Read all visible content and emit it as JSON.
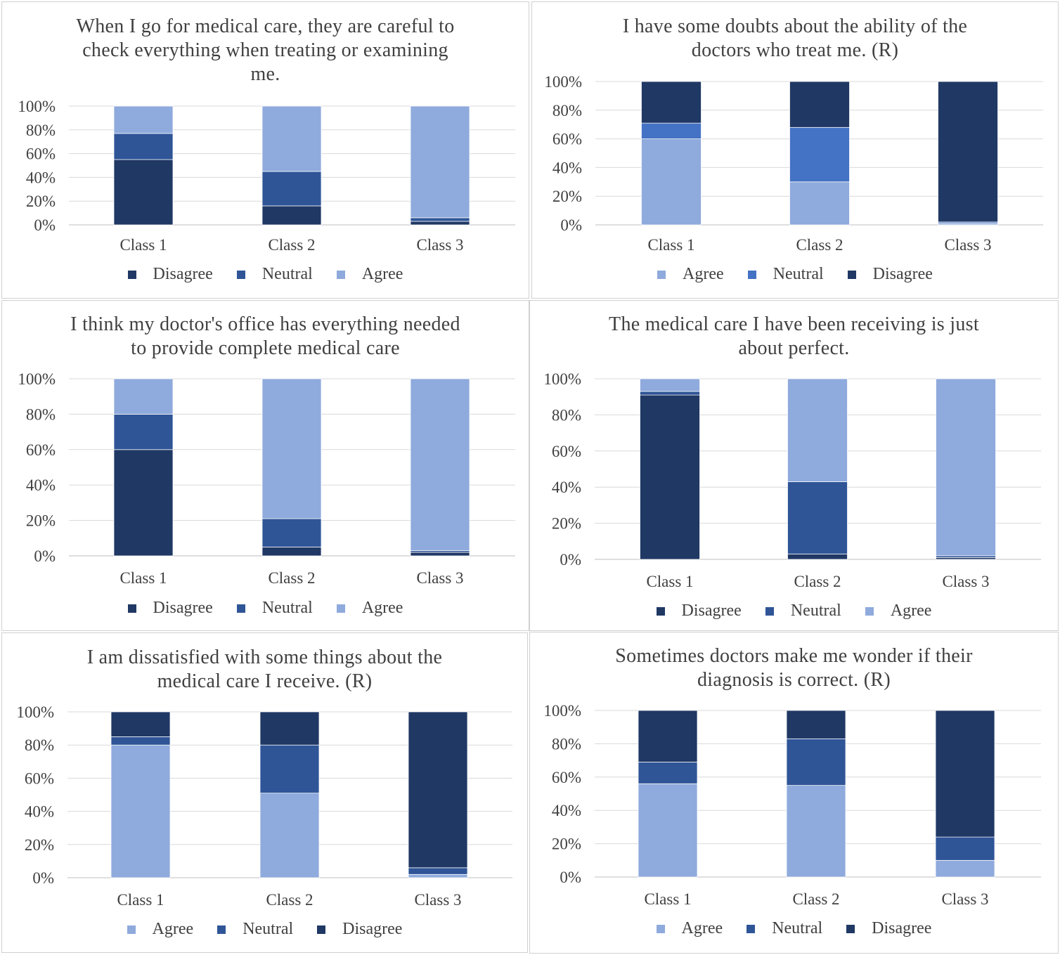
{
  "colors": {
    "Disagree": "#203864",
    "Neutral": "#2F5597",
    "Neutral_bright": "#4472C4",
    "Agree": "#8FAADC",
    "grid": "#d9d9d9",
    "text": "#404040"
  },
  "chart_data": [
    {
      "type": "bar",
      "stacked": true,
      "title": "When I go for medical care, they are careful to check everything when treating or examining me.",
      "title_lines": [
        "When I go for medical care, they are careful to",
        "check everything when treating or examining",
        "me."
      ],
      "categories": [
        "Class 1",
        "Class 2",
        "Class 3"
      ],
      "yticks": [
        "0%",
        "20%",
        "40%",
        "60%",
        "80%",
        "100%"
      ],
      "ylim": [
        0,
        100
      ],
      "series": [
        {
          "name": "Disagree",
          "values": [
            55,
            16,
            3
          ]
        },
        {
          "name": "Neutral",
          "values": [
            22,
            29,
            3
          ]
        },
        {
          "name": "Agree",
          "values": [
            23,
            55,
            94
          ]
        }
      ],
      "legend": [
        "Disagree",
        "Neutral",
        "Agree"
      ]
    },
    {
      "type": "bar",
      "stacked": true,
      "title": "I have some doubts about the ability of the doctors who treat me. (R)",
      "title_lines": [
        "I have some doubts about the ability of the",
        "doctors who treat me. (R)"
      ],
      "categories": [
        "Class 1",
        "Class 2",
        "Class 3"
      ],
      "yticks": [
        "0%",
        "20%",
        "40%",
        "60%",
        "80%",
        "100%"
      ],
      "ylim": [
        0,
        100
      ],
      "series": [
        {
          "name": "Agree",
          "values": [
            60,
            30,
            1
          ]
        },
        {
          "name": "Neutral",
          "values": [
            11,
            38,
            1
          ]
        },
        {
          "name": "Disagree",
          "values": [
            29,
            32,
            98
          ]
        }
      ],
      "legend": [
        "Agree",
        "Neutral",
        "Disagree"
      ]
    },
    {
      "type": "bar",
      "stacked": true,
      "title": "I think my doctor's office has everything needed to provide complete medical care",
      "title_lines": [
        "I think my doctor's office has everything needed",
        "to provide complete medical care"
      ],
      "categories": [
        "Class 1",
        "Class 2",
        "Class 3"
      ],
      "yticks": [
        "0%",
        "20%",
        "40%",
        "60%",
        "80%",
        "100%"
      ],
      "ylim": [
        0,
        100
      ],
      "series": [
        {
          "name": "Disagree",
          "values": [
            60,
            5,
            2
          ]
        },
        {
          "name": "Neutral",
          "values": [
            20,
            16,
            1
          ]
        },
        {
          "name": "Agree",
          "values": [
            20,
            79,
            97
          ]
        }
      ],
      "legend": [
        "Disagree",
        "Neutral",
        "Agree"
      ]
    },
    {
      "type": "bar",
      "stacked": true,
      "title": "The medical care I have been receiving is just about perfect.",
      "title_lines": [
        "The medical care I have been receiving is just",
        "about perfect."
      ],
      "categories": [
        "Class 1",
        "Class 2",
        "Class 3"
      ],
      "yticks": [
        "0%",
        "20%",
        "40%",
        "60%",
        "80%",
        "100%"
      ],
      "ylim": [
        0,
        100
      ],
      "series": [
        {
          "name": "Disagree",
          "values": [
            91,
            3,
            1
          ]
        },
        {
          "name": "Neutral",
          "values": [
            2,
            40,
            1
          ]
        },
        {
          "name": "Agree",
          "values": [
            7,
            57,
            98
          ]
        }
      ],
      "legend": [
        "Disagree",
        "Neutral",
        "Agree"
      ]
    },
    {
      "type": "bar",
      "stacked": true,
      "title": "I am dissatisfied with some things about the medical care I receive. (R)",
      "title_lines": [
        "I am dissatisfied with some things about the",
        "medical care I receive. (R)"
      ],
      "categories": [
        "Class 1",
        "Class 2",
        "Class 3"
      ],
      "yticks": [
        "0%",
        "20%",
        "40%",
        "60%",
        "80%",
        "100%"
      ],
      "ylim": [
        0,
        100
      ],
      "series": [
        {
          "name": "Agree",
          "values": [
            80,
            51,
            2
          ]
        },
        {
          "name": "Neutral",
          "values": [
            5,
            29,
            4
          ]
        },
        {
          "name": "Disagree",
          "values": [
            15,
            20,
            94
          ]
        }
      ],
      "legend": [
        "Agree",
        "Neutral",
        "Disagree"
      ]
    },
    {
      "type": "bar",
      "stacked": true,
      "title": "Sometimes doctors make me wonder if their diagnosis is correct. (R)",
      "title_lines": [
        "Sometimes doctors make me wonder if their",
        "diagnosis is correct. (R)"
      ],
      "categories": [
        "Class 1",
        "Class 2",
        "Class 3"
      ],
      "yticks": [
        "0%",
        "20%",
        "40%",
        "60%",
        "80%",
        "100%"
      ],
      "ylim": [
        0,
        100
      ],
      "series": [
        {
          "name": "Agree",
          "values": [
            56,
            55,
            10
          ]
        },
        {
          "name": "Neutral",
          "values": [
            13,
            28,
            14
          ]
        },
        {
          "name": "Disagree",
          "values": [
            31,
            17,
            76
          ]
        }
      ],
      "legend": [
        "Agree",
        "Neutral",
        "Disagree"
      ]
    }
  ]
}
